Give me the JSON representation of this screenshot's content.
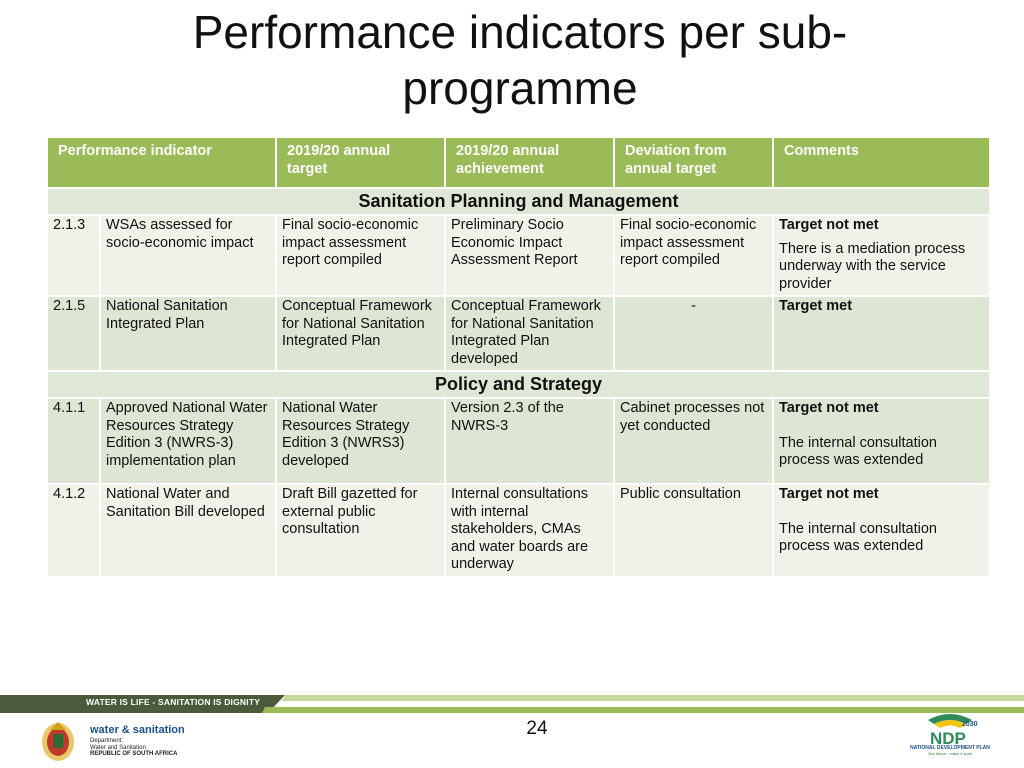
{
  "slide": {
    "title": "Performance indicators per sub-programme",
    "page_number": "24"
  },
  "table": {
    "headers": [
      "Performance indicator",
      "2019/20 annual target",
      "2019/20 annual achievement",
      "Deviation from annual target",
      "Comments"
    ],
    "sections": [
      {
        "title": "Sanitation Planning and Management",
        "rows": [
          {
            "code": "2.1.3",
            "indicator": "WSAs assessed for socio-economic impact",
            "target": "Final socio-economic impact assessment report compiled",
            "achievement": "Preliminary Socio Economic Impact Assessment Report",
            "deviation": "Final socio-economic impact assessment report compiled",
            "comment_heading": "Target not met",
            "comment_body": "There is a mediation process underway with the service provider"
          },
          {
            "code": "2.1.5",
            "indicator": "National Sanitation Integrated Plan",
            "target": "Conceptual Framework for National Sanitation Integrated Plan",
            "achievement": "Conceptual Framework for National Sanitation Integrated Plan developed",
            "deviation": "-",
            "comment_heading": "Target met",
            "comment_body": ""
          }
        ]
      },
      {
        "title": "Policy and Strategy",
        "rows": [
          {
            "code": "4.1.1",
            "indicator": "Approved National Water Resources Strategy Edition 3 (NWRS-3) implementation plan",
            "target": "National Water Resources Strategy Edition 3 (NWRS3) developed",
            "achievement": "Version 2.3 of the NWRS-3",
            "deviation": "Cabinet processes not yet conducted",
            "comment_heading": "Target not met",
            "comment_body": "The internal consultation process was extended"
          },
          {
            "code": "4.1.2",
            "indicator": "National Water and Sanitation Bill developed",
            "target": "Draft Bill gazetted for external public consultation",
            "achievement": "Internal consultations with internal stakeholders, CMAs and water boards are underway",
            "deviation": "Public consultation",
            "comment_heading": "Target not met",
            "comment_body": "The internal consultation process was extended"
          }
        ]
      }
    ]
  },
  "footer": {
    "slogan": "WATER IS LIFE - SANITATION IS DIGNITY",
    "brand": "water & sanitation",
    "dept_line1": "Department:",
    "dept_line2": "Water and Sanitation",
    "dept_line3": "REPUBLIC OF SOUTH AFRICA",
    "ndp_year": "2030",
    "ndp_short": "NDP",
    "ndp_name": "NATIONAL DEVELOPMENT PLAN",
    "ndp_tagline": "Our future - make it work"
  },
  "colors": {
    "header_green": "#9bbb59",
    "row_light": "#eef2e8",
    "row_dark": "#dce6d2",
    "brand_blue": "#1c4f8a"
  }
}
